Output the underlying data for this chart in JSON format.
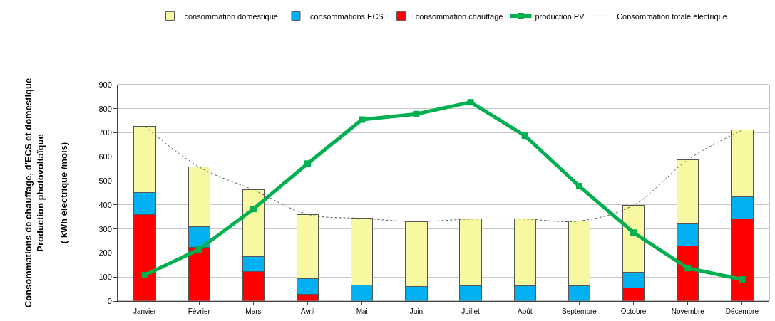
{
  "chart_data": {
    "type": "bar",
    "stacked": true,
    "ylabel": "Consommations de chauffage, d'ECS et domestique\nProduction photovoltaïque\n\n( kWh électrique /mois)",
    "categories": [
      "Janvier",
      "Février",
      "Mars",
      "Avril",
      "Mai",
      "Juin",
      "Juillet",
      "Août",
      "Septembre",
      "Octobre",
      "Novembre",
      "Décembre"
    ],
    "series": [
      {
        "name": "consommation chauffage",
        "color": "#ff0000",
        "values": [
          360,
          225,
          122,
          28,
          0,
          0,
          0,
          0,
          0,
          55,
          230,
          343
        ]
      },
      {
        "name": "consommations ECS",
        "color": "#00b0f0",
        "values": [
          91,
          83,
          64,
          65,
          67,
          62,
          63,
          63,
          64,
          65,
          90,
          90
        ]
      },
      {
        "name": "consommation domestique",
        "color": "#f8f8a0",
        "values": [
          276,
          250,
          276,
          268,
          277,
          269,
          278,
          278,
          269,
          279,
          268,
          278
        ]
      },
      {
        "name": "production PV",
        "type": "line",
        "color": "#00b050",
        "marker": "square",
        "line_style": "solid",
        "values": [
          108,
          215,
          383,
          572,
          755,
          778,
          827,
          688,
          478,
          285,
          137,
          90
        ]
      },
      {
        "name": "Consommation totale électrique",
        "type": "line",
        "color": "#555555",
        "marker": "none",
        "line_style": "dotted",
        "values": [
          727,
          558,
          462,
          361,
          344,
          331,
          341,
          341,
          333,
          399,
          588,
          711
        ]
      }
    ],
    "ylim": [
      0,
      900
    ],
    "yticks": [
      0,
      100,
      200,
      300,
      400,
      500,
      600,
      700,
      800,
      900
    ],
    "grid": "y",
    "legend": "top"
  }
}
